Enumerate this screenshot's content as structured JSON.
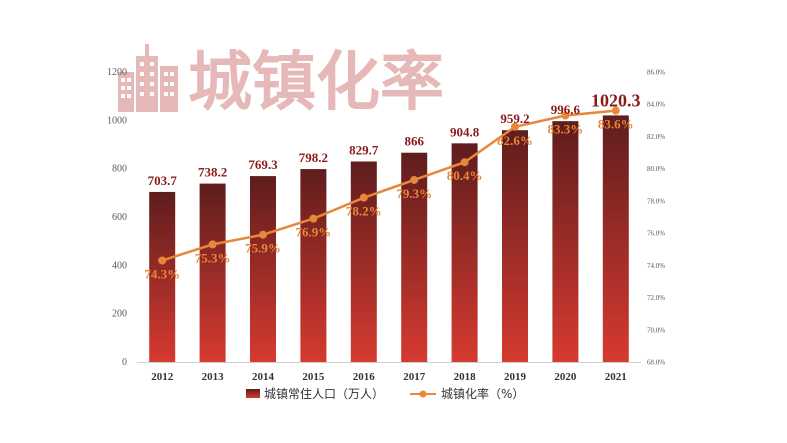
{
  "chart_data": {
    "type": "bar",
    "title": "城镇化率",
    "categories": [
      "2012",
      "2013",
      "2014",
      "2015",
      "2016",
      "2017",
      "2018",
      "2019",
      "2020",
      "2021"
    ],
    "series": [
      {
        "name": "城镇常住人口（万人）",
        "type": "bar",
        "axis": "left",
        "values": [
          703.7,
          738.2,
          769.3,
          798.2,
          829.7,
          866,
          904.8,
          959.2,
          996.6,
          1020.3
        ],
        "labels": [
          "703.7",
          "738.2",
          "769.3",
          "798.2",
          "829.7",
          "866",
          "904.8",
          "959.2",
          "996.6",
          "1020.3"
        ]
      },
      {
        "name": "城镇化率（%）",
        "type": "line",
        "axis": "right",
        "values": [
          74.3,
          75.3,
          75.9,
          76.9,
          78.2,
          79.3,
          80.4,
          82.6,
          83.3,
          83.6
        ],
        "labels": [
          "74.3%",
          "75.3%",
          "75.9%",
          "76.9%",
          "78.2%",
          "79.3%",
          "80.4%",
          "82.6%",
          "83.3%",
          "83.6%"
        ]
      }
    ],
    "y_left": {
      "min": 0,
      "max": 1200,
      "ticks": [
        0,
        200,
        400,
        600,
        800,
        1000,
        1200
      ],
      "tick_labels": [
        "0",
        "200",
        "400",
        "600",
        "800",
        "1000",
        "1200"
      ]
    },
    "y_right": {
      "min": 68,
      "max": 86,
      "ticks": [
        68,
        70,
        72,
        74,
        76,
        78,
        80,
        82,
        84,
        86
      ],
      "tick_labels": [
        "68.0%",
        "70.0%",
        "72.0%",
        "74.0%",
        "76.0%",
        "78.0%",
        "80.0%",
        "82.0%",
        "84.0%",
        "86.0%"
      ]
    },
    "grid": false,
    "legend_position": "bottom-center",
    "colors": {
      "bar_top": "#5e1d1d",
      "bar_bottom": "#d63a30",
      "line": "#e8873a",
      "bar_label": "#8b1a1a",
      "title": "#e6b8b8"
    }
  }
}
